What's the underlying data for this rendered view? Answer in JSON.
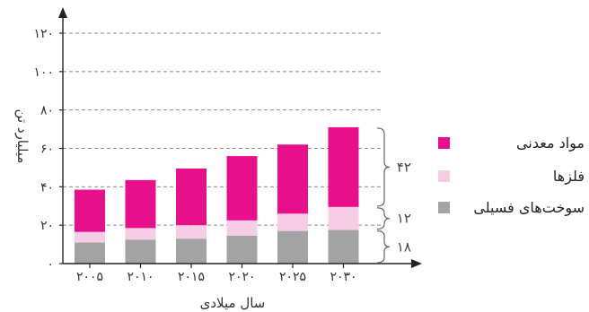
{
  "chart_data": {
    "type": "bar",
    "stacked": true,
    "categories": [
      "۲۰۰۵",
      "۲۰۱۰",
      "۲۰۱۵",
      "۲۰۲۰",
      "۲۰۲۵",
      "۲۰۳۰"
    ],
    "series": [
      {
        "name": "سوخت‌های فسیلی",
        "color": "#a3a3a3",
        "values": [
          11,
          12.5,
          13,
          14.5,
          17,
          17.5
        ]
      },
      {
        "name": "فلزها",
        "color": "#f7cde6",
        "values": [
          5.5,
          6,
          7,
          8,
          9,
          12
        ]
      },
      {
        "name": "مواد معدنی",
        "color": "#e8108a",
        "values": [
          22,
          25,
          29.5,
          33.5,
          36,
          41.5
        ]
      }
    ],
    "xlabel": "سال میلادی",
    "ylabel": "میلیارد تن",
    "ylim": [
      0,
      120
    ],
    "yticks": [
      {
        "value": 0,
        "label": "۰"
      },
      {
        "value": 20,
        "label": "۲۰"
      },
      {
        "value": 40,
        "label": "۴۰"
      },
      {
        "value": 60,
        "label": "۶۰"
      },
      {
        "value": 80,
        "label": "۸۰"
      },
      {
        "value": 100,
        "label": "۱۰۰"
      },
      {
        "value": 120,
        "label": "۱۲۰"
      }
    ],
    "grid": true,
    "legend_position": "right",
    "annotations": [
      {
        "label": "۱۸",
        "from": 0,
        "to": 17.5
      },
      {
        "label": "۱۲",
        "from": 17.5,
        "to": 29.5
      },
      {
        "label": "۴۲",
        "from": 29.5,
        "to": 71
      }
    ]
  }
}
